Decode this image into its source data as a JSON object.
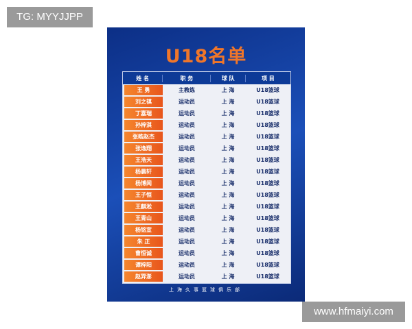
{
  "watermark_left": "TG: MYYJJPP",
  "watermark_right": "www.hfmaiyi.com",
  "poster": {
    "title": "U18名单",
    "headers": [
      "姓 名",
      "职 务",
      "球 队",
      "项 目"
    ],
    "rows": [
      [
        "王 勇",
        "主教练",
        "上 海",
        "U18篮球"
      ],
      [
        "刘之祺",
        "运动员",
        "上 海",
        "U18篮球"
      ],
      [
        "丁嘉瑞",
        "运动员",
        "上 海",
        "U18篮球"
      ],
      [
        "孙梓淇",
        "运动员",
        "上 海",
        "U18篮球"
      ],
      [
        "张皓赵杰",
        "运动员",
        "上 海",
        "U18篮球"
      ],
      [
        "张逸翔",
        "运动员",
        "上 海",
        "U18篮球"
      ],
      [
        "王浩天",
        "运动员",
        "上 海",
        "U18篮球"
      ],
      [
        "杨晨轩",
        "运动员",
        "上 海",
        "U18篮球"
      ],
      [
        "杨博闻",
        "运动员",
        "上 海",
        "U18篮球"
      ],
      [
        "王子恒",
        "运动员",
        "上 海",
        "U18篮球"
      ],
      [
        "王麒淞",
        "运动员",
        "上 海",
        "U18篮球"
      ],
      [
        "王青山",
        "运动员",
        "上 海",
        "U18篮球"
      ],
      [
        "杨铭宣",
        "运动员",
        "上 海",
        "U18篮球"
      ],
      [
        "朱 正",
        "运动员",
        "上 海",
        "U18篮球"
      ],
      [
        "曹恒诚",
        "运动员",
        "上 海",
        "U18篮球"
      ],
      [
        "谭梓阳",
        "运动员",
        "上 海",
        "U18篮球"
      ],
      [
        "赵羿澎",
        "运动员",
        "上 海",
        "U18篮球"
      ]
    ],
    "footer": "上海久事篮球俱乐部"
  }
}
